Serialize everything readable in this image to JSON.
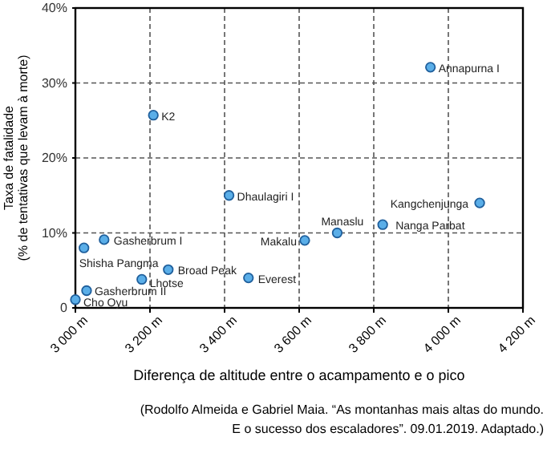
{
  "chart_data": {
    "type": "scatter",
    "x": [
      3952,
      3209,
      3412,
      4084,
      3702,
      3824,
      3615,
      3077,
      3023,
      3249,
      3178,
      3464,
      3030,
      3000
    ],
    "values": [
      32.1,
      25.7,
      15.0,
      14.0,
      10.0,
      11.1,
      9.0,
      9.1,
      8.0,
      5.1,
      3.8,
      4.0,
      2.3,
      1.1
    ],
    "color": "#5aaee8",
    "marker": "circle",
    "xlim": [
      3000,
      4200
    ],
    "xticks": [
      {
        "value": 3000,
        "label": "3 000 m"
      },
      {
        "value": 3200,
        "label": "3 200 m"
      },
      {
        "value": 3400,
        "label": "3 400 m"
      },
      {
        "value": 3600,
        "label": "3 600 m"
      },
      {
        "value": 3800,
        "label": "3 800 m"
      },
      {
        "value": 4000,
        "label": "4 000 m"
      },
      {
        "value": 4200,
        "label": "4 200 m"
      }
    ],
    "ylim": [
      0,
      40
    ],
    "yticks": [
      0,
      {
        "value": 10,
        "label": "10%"
      },
      {
        "value": 20,
        "label": "20%"
      },
      {
        "value": 30,
        "label": "30%"
      },
      {
        "value": 40,
        "label": "40%"
      }
    ],
    "grid": true,
    "xlabel": "Diferença de altitude entre o acampamento e o pico",
    "ylabel": "Taxa de fatalidade\n(% de tentativas que levam à morte)",
    "annotations": [
      {
        "text": "Annapurna I",
        "x": 3952,
        "y": 32.1
      },
      {
        "text": "K2",
        "x": 3209,
        "y": 25.7
      },
      {
        "text": "Dhaulagiri I",
        "x": 3412,
        "y": 15.0
      },
      {
        "text": "Kangchenjunga",
        "x": 4084,
        "y": 14.0
      },
      {
        "text": "Manaslu",
        "x": 3702,
        "y": 10.0
      },
      {
        "text": "Nanga Parbat",
        "x": 3824,
        "y": 11.1
      },
      {
        "text": "Makalu",
        "x": 3615,
        "y": 9.0
      },
      {
        "text": "Gasherbrum I",
        "x": 3077,
        "y": 9.1
      },
      {
        "text": "Shisha Pangma",
        "x": 3023,
        "y": 8.0
      },
      {
        "text": "Broad Peak",
        "x": 3249,
        "y": 5.1
      },
      {
        "text": "Lhotse",
        "x": 3178,
        "y": 3.8
      },
      {
        "text": "Everest",
        "x": 3464,
        "y": 4.0
      },
      {
        "text": "Gasherbrum II",
        "x": 3030,
        "y": 2.3
      },
      {
        "text": "Cho Oyu",
        "x": 3000,
        "y": 1.1
      },
      "(Rodolfo Almeida e Gabriel Maia. “As montanhas mais altas do mundo.\nE o sucesso dos escaladores”. 09.01.2019. Adaptado.)"
    ]
  }
}
